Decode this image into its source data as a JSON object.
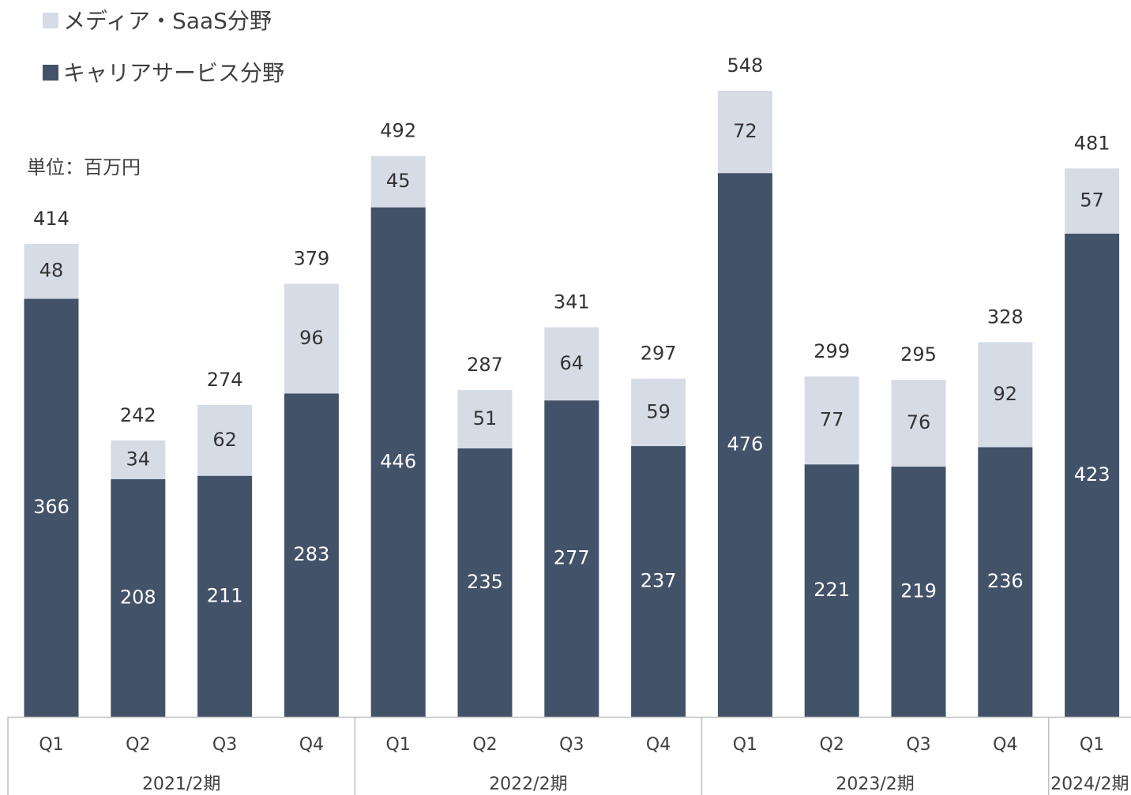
{
  "chart_data": {
    "type": "bar",
    "stacked": true,
    "unit_label": "単位：百万円",
    "legend": {
      "placement": "top-left"
    },
    "colors": {
      "career": "#425268",
      "media": "#d6dce6"
    },
    "categories": [
      "Q1",
      "Q2",
      "Q3",
      "Q4",
      "Q1",
      "Q2",
      "Q3",
      "Q4",
      "Q1",
      "Q2",
      "Q3",
      "Q4",
      "Q1"
    ],
    "groups": [
      {
        "label": "2021/2期",
        "count": 4
      },
      {
        "label": "2022/2期",
        "count": 4
      },
      {
        "label": "2023/2期",
        "count": 4
      },
      {
        "label": "2024/2期",
        "count": 1
      }
    ],
    "series": [
      {
        "name": "キャリアサービス分野",
        "values": [
          366,
          208,
          211,
          283,
          446,
          235,
          277,
          237,
          476,
          221,
          219,
          236,
          423
        ]
      },
      {
        "name": "メディア・SaaS分野",
        "values": [
          48,
          34,
          62,
          96,
          45,
          51,
          64,
          59,
          72,
          77,
          76,
          92,
          57
        ]
      }
    ],
    "totals": [
      414,
      242,
      274,
      379,
      492,
      287,
      341,
      297,
      548,
      299,
      295,
      328,
      481
    ],
    "ylim": [
      0,
      548
    ],
    "grid": false
  }
}
